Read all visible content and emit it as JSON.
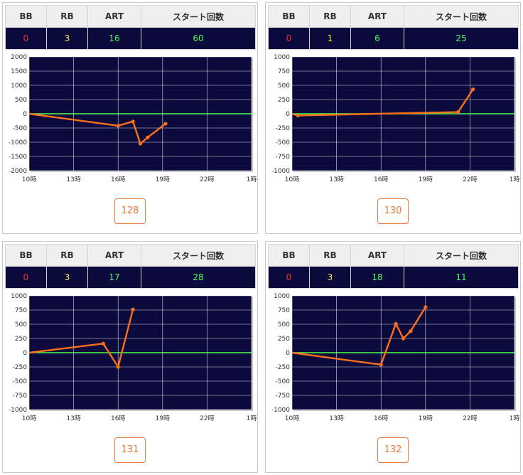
{
  "headers": {
    "bb": "BB",
    "rb": "RB",
    "art": "ART",
    "start": "スタート回数"
  },
  "colors": {
    "plot_bg": "#0a0a3c",
    "zero_line": "#4dff4d",
    "series": "#ff6f1a",
    "bb": "#ff2a2a",
    "rb": "#ffe94a",
    "art": "#4dff5a"
  },
  "machines": [
    {
      "number": "128",
      "bb": "0",
      "rb": "3",
      "art": "16",
      "start": "60"
    },
    {
      "number": "130",
      "bb": "0",
      "rb": "1",
      "art": "6",
      "start": "25"
    },
    {
      "number": "131",
      "bb": "0",
      "rb": "3",
      "art": "17",
      "start": "28"
    },
    {
      "number": "132",
      "bb": "0",
      "rb": "3",
      "art": "18",
      "start": "11"
    }
  ],
  "chart_data": [
    {
      "type": "line",
      "grid": true,
      "xticks": [
        "10時",
        "13時",
        "16時",
        "19時",
        "22時",
        "1時"
      ],
      "xlim": [
        10,
        25
      ],
      "yticks": [
        "2000",
        "1500",
        "1000",
        "500",
        "0",
        "-500",
        "-1000",
        "-1500",
        "-2000"
      ],
      "ylim": [
        -2000,
        2000
      ],
      "x": [
        10,
        16,
        17,
        17.5,
        18,
        19.2
      ],
      "y": [
        0,
        -420,
        -270,
        -1050,
        -830,
        -350
      ]
    },
    {
      "type": "line",
      "grid": true,
      "xticks": [
        "10時",
        "13時",
        "16時",
        "19時",
        "22時",
        "1時"
      ],
      "xlim": [
        10,
        25
      ],
      "yticks": [
        "1000",
        "750",
        "500",
        "250",
        "0",
        "-250",
        "-500",
        "-750",
        "-1000"
      ],
      "ylim": [
        -1000,
        1000
      ],
      "x": [
        10,
        10.4,
        21.2,
        22.2
      ],
      "y": [
        0,
        -30,
        30,
        430
      ]
    },
    {
      "type": "line",
      "grid": true,
      "xticks": [
        "10時",
        "13時",
        "16時",
        "19時",
        "22時",
        "1時"
      ],
      "xlim": [
        10,
        25
      ],
      "yticks": [
        "1000",
        "750",
        "500",
        "250",
        "0",
        "-250",
        "-500",
        "-750",
        "-1000"
      ],
      "ylim": [
        -1000,
        1000
      ],
      "x": [
        10,
        15,
        16,
        17
      ],
      "y": [
        0,
        160,
        -250,
        760
      ]
    },
    {
      "type": "line",
      "grid": true,
      "xticks": [
        "10時",
        "13時",
        "16時",
        "19時",
        "22時",
        "1時"
      ],
      "xlim": [
        10,
        25
      ],
      "yticks": [
        "1000",
        "750",
        "500",
        "250",
        "0",
        "-250",
        "-500",
        "-750",
        "-1000"
      ],
      "ylim": [
        -1000,
        1000
      ],
      "x": [
        10,
        16,
        17,
        17.5,
        18,
        19
      ],
      "y": [
        0,
        -210,
        510,
        250,
        380,
        800
      ]
    }
  ]
}
